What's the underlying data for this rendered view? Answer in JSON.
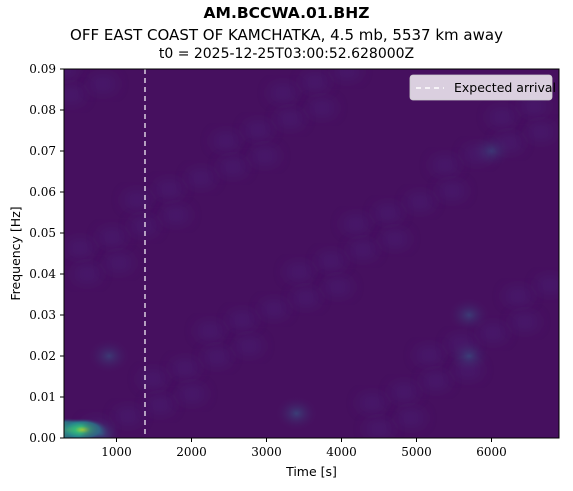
{
  "chart_data": {
    "type": "heatmap",
    "title": "AM.BCCWA.01.BHZ",
    "subtitle": "OFF EAST COAST OF KAMCHATKA, 4.5 mb, 5537 km away",
    "subtitle2": "t0 = 2025-12-25T03:00:52.628000Z",
    "xlabel": "Time [s]",
    "ylabel": "Frequency [Hz]",
    "xlim": [
      300,
      6900
    ],
    "ylim": [
      0.0,
      0.09
    ],
    "x_ticks": [
      1000,
      2000,
      3000,
      4000,
      5000,
      6000
    ],
    "y_ticks": [
      0.0,
      0.01,
      0.02,
      0.03,
      0.04,
      0.05,
      0.06,
      0.07,
      0.08,
      0.09
    ],
    "y_tick_labels": [
      "0.00",
      "0.01",
      "0.02",
      "0.03",
      "0.04",
      "0.05",
      "0.06",
      "0.07",
      "0.08",
      "0.09"
    ],
    "x_tick_labels": [
      "1000",
      "2000",
      "3000",
      "4000",
      "5000",
      "6000"
    ],
    "colormap": "viridis",
    "background_color": "#46105f",
    "expected_arrival": 1380,
    "legend": {
      "entries": [
        {
          "label": "Expected arrival",
          "style": "dashed",
          "color": "#ffffff"
        }
      ],
      "placement": "top-right"
    },
    "hotspots": [
      {
        "x": 350,
        "y": 0.002,
        "intensity": 1.0
      },
      {
        "x": 550,
        "y": 0.002,
        "intensity": 0.55
      },
      {
        "x": 800,
        "y": 0.001,
        "intensity": 0.3
      },
      {
        "x": 3400,
        "y": 0.006,
        "intensity": 0.22
      },
      {
        "x": 5700,
        "y": 0.02,
        "intensity": 0.2
      },
      {
        "x": 5700,
        "y": 0.03,
        "intensity": 0.18
      },
      {
        "x": 900,
        "y": 0.02,
        "intensity": 0.16
      },
      {
        "x": 6000,
        "y": 0.07,
        "intensity": 0.12
      }
    ],
    "grid": false
  }
}
